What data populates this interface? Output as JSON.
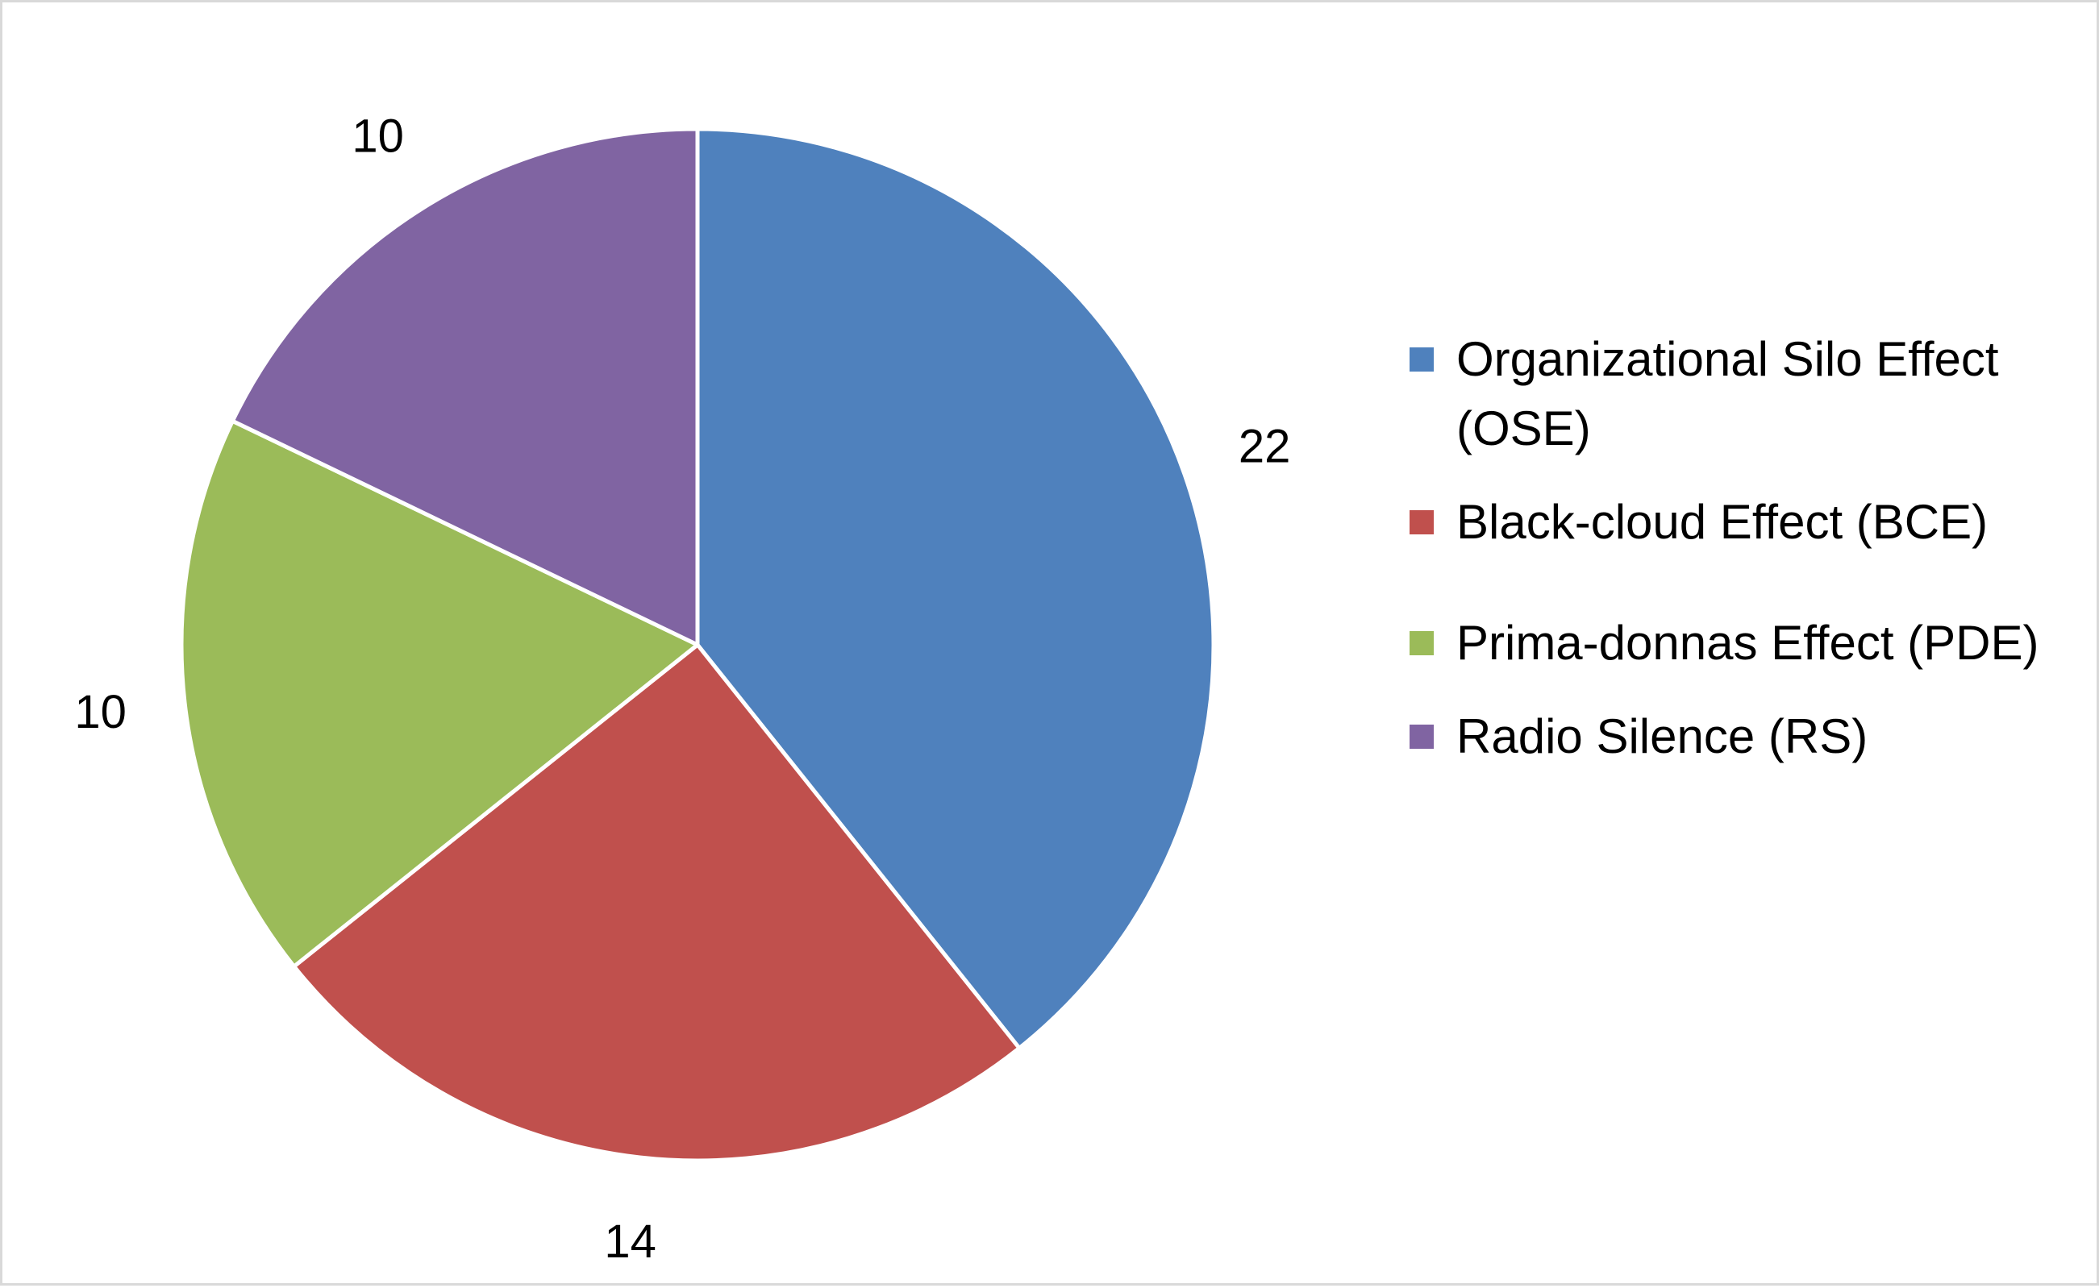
{
  "chart_data": {
    "type": "pie",
    "categories": [
      "Organizational Silo Effect (OSE)",
      "Black-cloud Effect (BCE)",
      "Prima-donnas Effect (PDE)",
      "Radio Silence (RS)"
    ],
    "values": [
      22,
      14,
      10,
      10
    ],
    "data_labels": [
      "22",
      "14",
      "10",
      "10"
    ],
    "colors": [
      "#4f81bd",
      "#c0504d",
      "#9bbb59",
      "#8064a2"
    ],
    "slice_border_color": "#ffffff",
    "start_angle_deg": 0,
    "direction": "clockwise",
    "legend_position": "right",
    "title": ""
  }
}
